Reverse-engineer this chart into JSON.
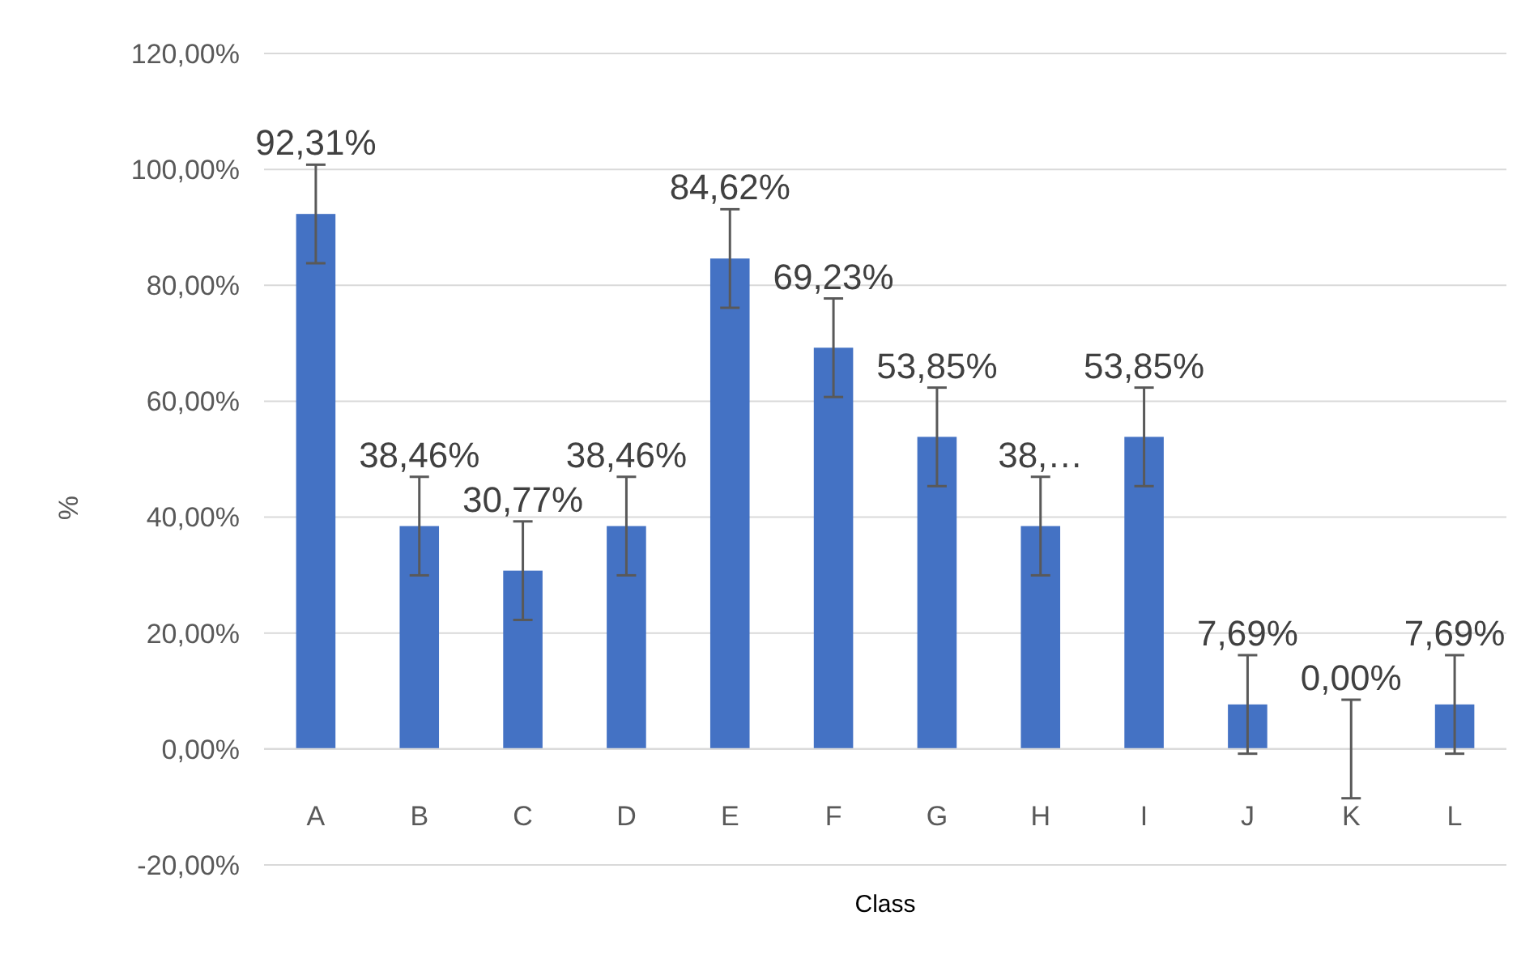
{
  "chart_data": {
    "type": "bar",
    "xlabel": "Class",
    "ylabel": "%",
    "categories": [
      "A",
      "B",
      "C",
      "D",
      "E",
      "F",
      "G",
      "H",
      "I",
      "J",
      "K",
      "L"
    ],
    "values": [
      92.31,
      38.46,
      30.77,
      38.46,
      84.62,
      69.23,
      53.85,
      38.46,
      53.85,
      7.69,
      0,
      7.69
    ],
    "value_labels": [
      "92,31%",
      "38,46%",
      "30,77%",
      "38,46%",
      "84,62%",
      "69,23%",
      "53,85%",
      "38,…",
      "53,85%",
      "7,69%",
      "0,00%",
      "7,69%"
    ],
    "errors": [
      8.5,
      8.5,
      8.5,
      8.5,
      8.5,
      8.5,
      8.5,
      8.5,
      8.5,
      8.5,
      8.5,
      8.5
    ],
    "color": "#4472c4",
    "ylim": [
      -20,
      120
    ],
    "yticks": [
      {
        "value": -20,
        "label": "-20,00%"
      },
      {
        "value": 0,
        "label": "0,00%"
      },
      {
        "value": 20,
        "label": "20,00%"
      },
      {
        "value": 40,
        "label": "40,00%"
      },
      {
        "value": 60,
        "label": "60,00%"
      },
      {
        "value": 80,
        "label": "80,00%"
      },
      {
        "value": 100,
        "label": "100,00%"
      },
      {
        "value": 120,
        "label": "120,00%"
      }
    ],
    "grid": "y"
  }
}
